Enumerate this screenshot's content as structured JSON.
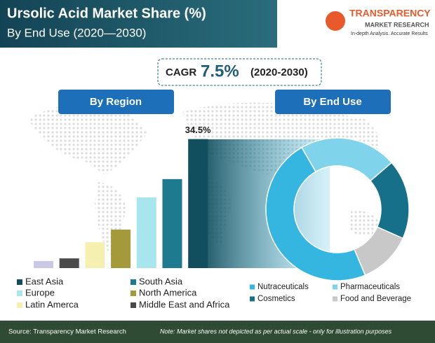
{
  "header": {
    "title": "Ursolic Acid Market Share (%)",
    "subtitle": "By End Use (2020—2030)"
  },
  "logo": {
    "name": "TRANSPARENCY",
    "line2": "MARKET RESEARCH",
    "tagline": "In-depth Analysis. Accurate Results"
  },
  "cagr": {
    "label": "CAGR",
    "value": "7.5%",
    "period": "(2020-2030)"
  },
  "footer": {
    "source": "Source: Transparency Market Research",
    "note": "Note: Market shares not depicted as per actual scale - only for illustration purposes"
  },
  "chart_data": [
    {
      "type": "bar",
      "title": "By Region",
      "categories": [
        null,
        "Middle East and Africa",
        "Latin Amerca",
        "North America",
        "Europe",
        "South Asia",
        "East Asia"
      ],
      "values": [
        1.9,
        2.6,
        6.9,
        10.3,
        18.9,
        23.8,
        34.5
      ],
      "value_labels": [
        null,
        null,
        null,
        null,
        null,
        null,
        "34.5%"
      ],
      "colors": [
        "#c9c9e6",
        "#4a4a4a",
        "#f5efb0",
        "#a59a3b",
        "#a8e6ee",
        "#1e7a8e",
        "#114e5e"
      ],
      "ylim": [
        0,
        35
      ]
    },
    {
      "type": "pie",
      "title": "By End Use",
      "categories": [
        "Nutraceuticals",
        "Pharmaceuticals",
        "Cosmetics",
        "Food and Beverage"
      ],
      "values": [
        48,
        22,
        18,
        12
      ],
      "colors": [
        "#34b6e0",
        "#7fd3ea",
        "#17708a",
        "#c8c8c8"
      ]
    }
  ]
}
